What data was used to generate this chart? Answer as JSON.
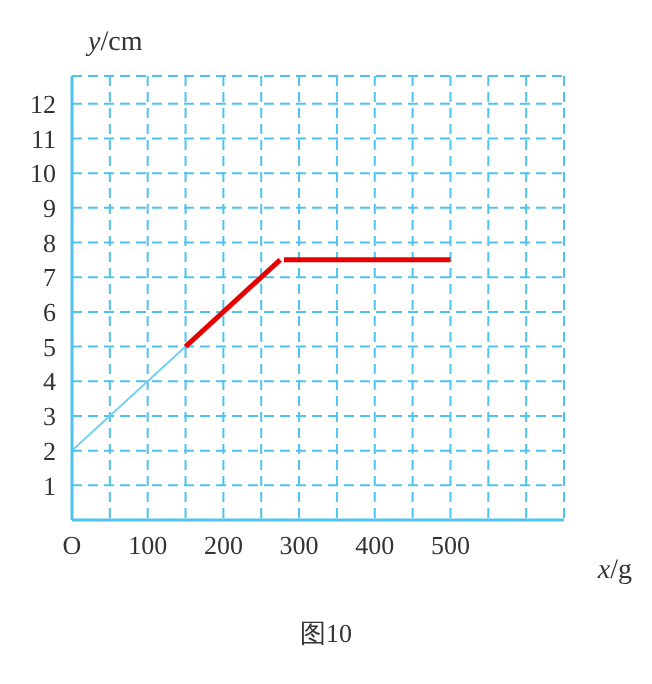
{
  "chart_data": {
    "type": "line",
    "title": "图10",
    "xlabel": "x/g",
    "ylabel": "y/cm",
    "series": [
      {
        "color": "#6fd0f0",
        "x": [
          0,
          150
        ],
        "values": [
          2,
          5
        ]
      },
      {
        "color": "#e60000",
        "x": [
          150,
          275
        ],
        "values": [
          5,
          7.5
        ]
      },
      {
        "color": "#e60000",
        "x": [
          280,
          500
        ],
        "values": [
          7.5,
          7.5
        ]
      }
    ],
    "xlim": [
      0,
      650
    ],
    "ylim": [
      0,
      12.8
    ],
    "xticks": [
      {
        "value": 0,
        "label": "O"
      },
      {
        "value": 50,
        "label": null
      },
      100,
      {
        "value": 150,
        "label": null
      },
      200,
      {
        "value": 250,
        "label": null
      },
      300,
      {
        "value": 350,
        "label": null
      },
      400,
      {
        "value": 450,
        "label": null
      },
      500,
      {
        "value": 550,
        "label": null
      },
      {
        "value": 600,
        "label": null
      }
    ],
    "yticks": [
      1,
      2,
      3,
      4,
      5,
      6,
      7,
      8,
      9,
      10,
      11,
      12
    ],
    "grid": true,
    "line_style": "solid",
    "marker": "none",
    "legend": false
  }
}
